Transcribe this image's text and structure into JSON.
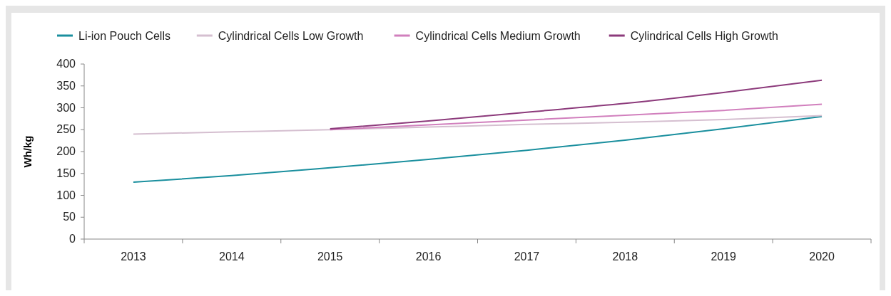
{
  "chart_data": {
    "type": "line",
    "ylabel": "Wh/kg",
    "categories": [
      "2013",
      "2014",
      "2015",
      "2016",
      "2017",
      "2018",
      "2019",
      "2020"
    ],
    "series": [
      {
        "name": "Li-ion Pouch Cells",
        "color": "#1a8f9e",
        "values": [
          130,
          145,
          163,
          182,
          203,
          226,
          252,
          280
        ]
      },
      {
        "name": "Cylindrical Cells Low Growth",
        "color": "#d5bfd0",
        "values": [
          240,
          245,
          250,
          256,
          262,
          267,
          273,
          282
        ]
      },
      {
        "name": "Cylindrical Cells Medium Growth",
        "color": "#d17fbd",
        "values": [
          null,
          null,
          250,
          261,
          272,
          283,
          294,
          308
        ]
      },
      {
        "name": "Cylindrical Cells High Growth",
        "color": "#8c3a7b",
        "values": [
          null,
          null,
          252,
          270,
          290,
          310,
          335,
          363
        ]
      }
    ],
    "ylim": [
      0,
      400
    ],
    "yticks": [
      0,
      50,
      100,
      150,
      200,
      250,
      300,
      350,
      400
    ],
    "legend": "top",
    "grid": false,
    "marker": "none",
    "line_style": "solid"
  }
}
